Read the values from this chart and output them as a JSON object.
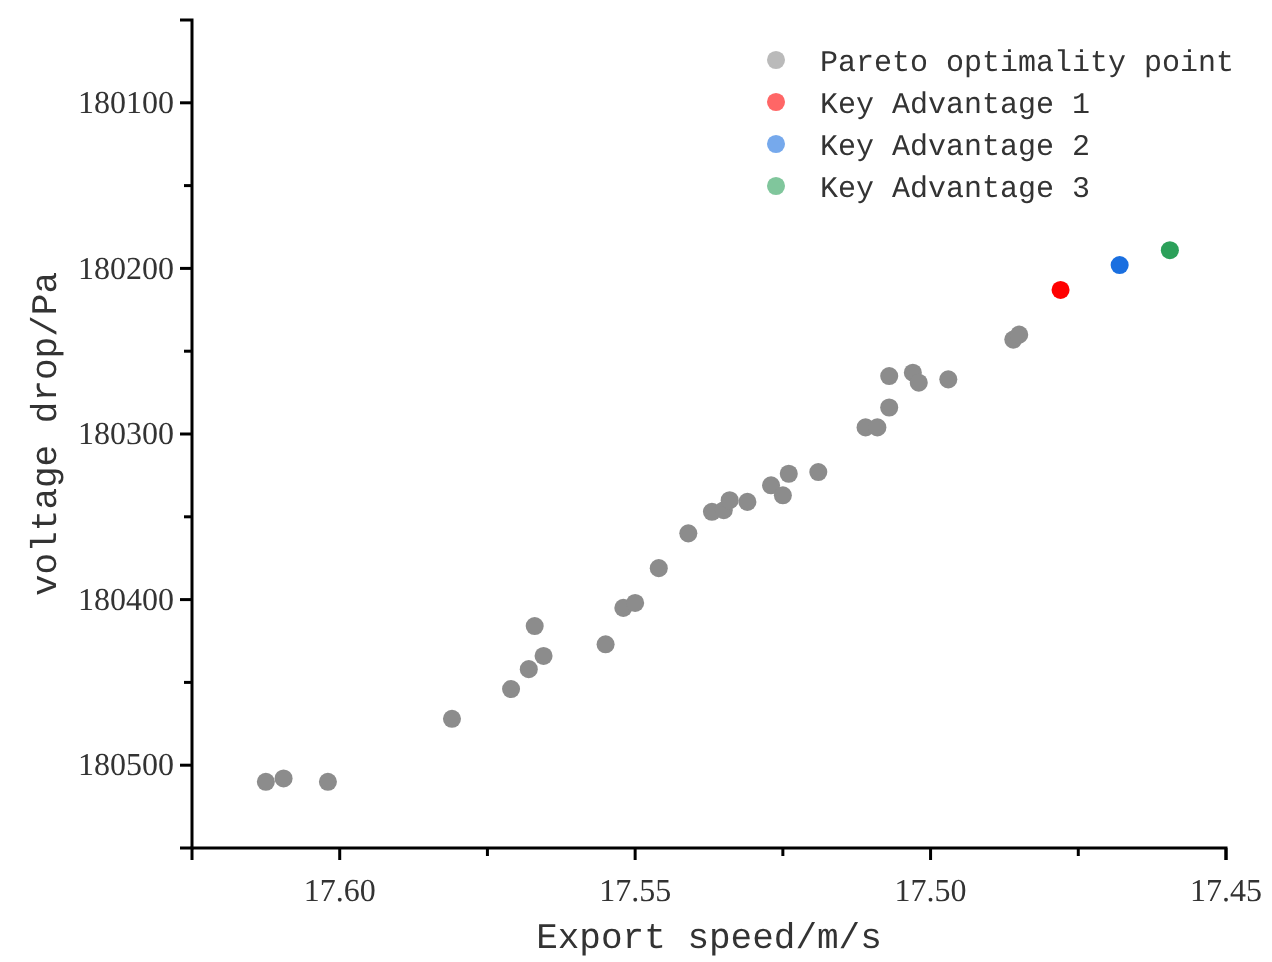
{
  "chart_data": {
    "type": "scatter",
    "xlabel": "Export speed/m/s",
    "ylabel": "voltage drop/Pa",
    "xlim": [
      17.625,
      17.45
    ],
    "ylim": [
      180550,
      180050
    ],
    "xticks": [
      {
        "value": 17.6,
        "label": "17.60"
      },
      {
        "value": 17.575,
        "label": null
      },
      17.55,
      {
        "value": 17.525,
        "label": null
      },
      {
        "value": 17.5,
        "label": "17.50"
      },
      {
        "value": 17.475,
        "label": null
      },
      17.45
    ],
    "yticks": [
      180100,
      {
        "value": 180150,
        "label": null
      },
      180200,
      {
        "value": 180250,
        "label": null
      },
      180300,
      {
        "value": 180350,
        "label": null
      },
      180400,
      {
        "value": 180450,
        "label": null
      },
      180500
    ],
    "marker": "circle",
    "legend": "top right",
    "grid": false,
    "series": [
      {
        "name": "Pareto optimality point",
        "color": "#8c8c8c",
        "x": [
          17.6125,
          17.6095,
          17.602,
          17.581,
          17.571,
          17.568,
          17.567,
          17.5655,
          17.555,
          17.552,
          17.55,
          17.546,
          17.541,
          17.537,
          17.535,
          17.534,
          17.531,
          17.527,
          17.525,
          17.524,
          17.519,
          17.511,
          17.509,
          17.507,
          17.507,
          17.503,
          17.502,
          17.497,
          17.486,
          17.485
        ],
        "values": [
          180510,
          180508,
          180510,
          180472,
          180454,
          180442,
          180416,
          180434,
          180427,
          180405,
          180402,
          180381,
          180360,
          180347,
          180346,
          180340,
          180341,
          180331,
          180337,
          180324,
          180323,
          180296,
          180296,
          180284,
          180265,
          180263,
          180269,
          180267,
          180243,
          180240
        ]
      },
      {
        "name": "Key Advantage 1",
        "color": "#ff0000",
        "x": [
          17.478
        ],
        "values": [
          180213
        ]
      },
      {
        "name": "Key Advantage 2",
        "color": "#1a6fe0",
        "x": [
          17.468
        ],
        "values": [
          180198
        ]
      },
      {
        "name": "Key Advantage 3",
        "color": "#2ca05a",
        "x": [
          17.4595
        ],
        "values": [
          180189
        ]
      }
    ]
  }
}
